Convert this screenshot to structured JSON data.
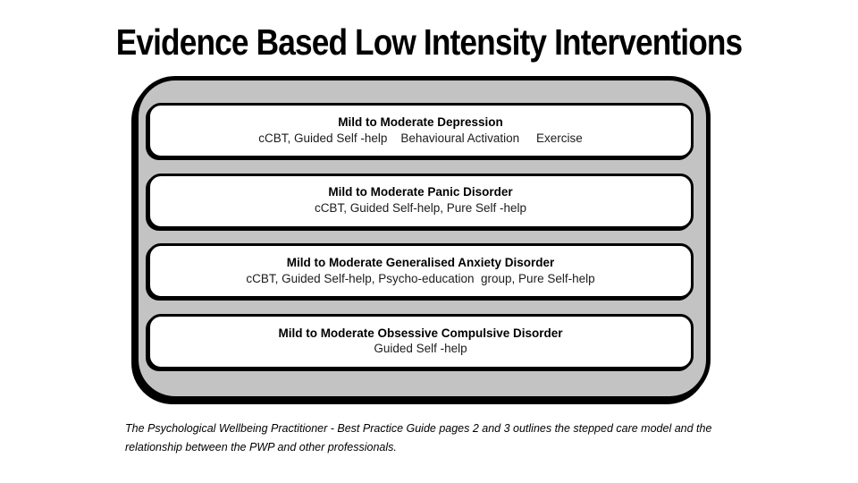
{
  "slide": {
    "title": "Evidence Based Low Intensity Interventions",
    "boxes": [
      {
        "heading": "Mild to Moderate Depression",
        "detail": "cCBT, Guided Self -help    Behavioural Activation     Exercise"
      },
      {
        "heading": "Mild to Moderate Panic Disorder",
        "detail": "cCBT, Guided Self-help, Pure Self -help"
      },
      {
        "heading": "Mild to Moderate Generalised Anxiety Disorder",
        "detail": "cCBT, Guided Self-help, Psycho-education  group, Pure Self-help"
      },
      {
        "heading": "Mild to Moderate Obsessive Compulsive Disorder",
        "detail": "Guided Self -help"
      }
    ],
    "footer_lines": [
      "The Psychological Wellbeing Practitioner - Best Practice Guide pages 2 and 3 outlines the stepped care model and the",
      "relationship between the PWP and other professionals."
    ],
    "colors": {
      "panel_fill": "#c3c3c3",
      "panel_border": "#000000",
      "box_fill": "#ffffff",
      "text": "#000000"
    }
  }
}
